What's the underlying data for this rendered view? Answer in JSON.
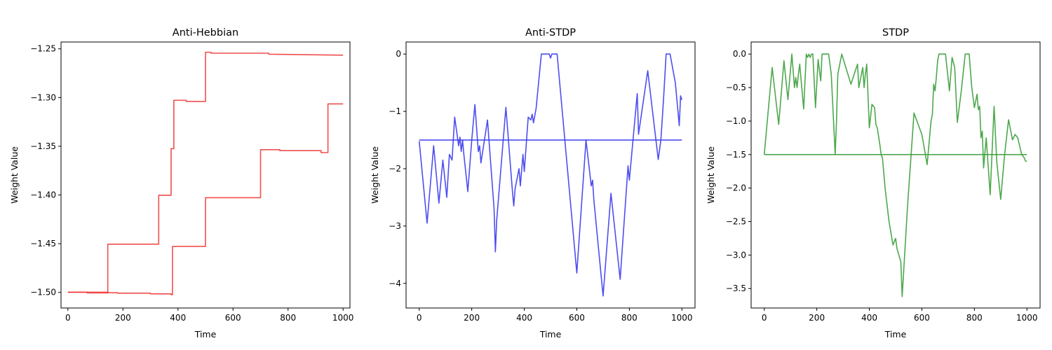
{
  "chart_data": [
    {
      "type": "line",
      "title": "Anti-Hebbian",
      "xlabel": "Time",
      "ylabel": "Weight Value",
      "xlim": [
        -25,
        1025
      ],
      "ylim": [
        -1.516,
        -1.243
      ],
      "xticks": [
        0,
        200,
        400,
        600,
        800,
        1000
      ],
      "xtick_labels": [
        "0",
        "200",
        "400",
        "600",
        "800",
        "1000"
      ],
      "yticks": [
        -1.5,
        -1.45,
        -1.4,
        -1.35,
        -1.3,
        -1.25
      ],
      "ytick_labels": [
        "−1.50",
        "−1.45",
        "−1.40",
        "−1.35",
        "−1.30",
        "−1.25"
      ],
      "color": "#ee3b3b",
      "grid": false,
      "series": [
        {
          "x": [
            0,
            70,
            70,
            145,
            145,
            330,
            330,
            375,
            375,
            385,
            385,
            395,
            395,
            430,
            430,
            500,
            500,
            520,
            520,
            730,
            730,
            1000
          ],
          "y": [
            -1.4998,
            -1.4998,
            -1.5005,
            -1.5005,
            -1.4505,
            -1.4505,
            -1.4003,
            -1.4003,
            -1.3525,
            -1.3525,
            -1.3028,
            -1.3028,
            -1.3028,
            -1.3028,
            -1.304,
            -1.304,
            -1.2535,
            -1.2535,
            -1.2545,
            -1.2545,
            -1.2555,
            -1.2565
          ]
        },
        {
          "x": [
            0,
            145,
            145,
            180,
            180,
            300,
            300,
            375,
            375,
            380,
            380,
            500,
            500,
            700,
            700,
            770,
            770,
            920,
            920,
            945,
            945,
            1000
          ],
          "y": [
            -1.4998,
            -1.4998,
            -1.5003,
            -1.5003,
            -1.5008,
            -1.5008,
            -1.5015,
            -1.5015,
            -1.5023,
            -1.5023,
            -1.4528,
            -1.4528,
            -1.4028,
            -1.4028,
            -1.3535,
            -1.3535,
            -1.3545,
            -1.3545,
            -1.3565,
            -1.3565,
            -1.3065,
            -1.3065
          ]
        }
      ]
    },
    {
      "type": "line",
      "title": "Anti-STDP",
      "xlabel": "Time",
      "ylabel": "Weight Value",
      "xlim": [
        -50,
        1050
      ],
      "ylim": [
        -4.43,
        0.21
      ],
      "xticks": [
        0,
        200,
        400,
        600,
        800,
        1000
      ],
      "xtick_labels": [
        "0",
        "200",
        "400",
        "600",
        "800",
        "1000"
      ],
      "yticks": [
        -4,
        -3,
        -2,
        -1,
        0
      ],
      "ytick_labels": [
        "−4",
        "−3",
        "−2",
        "−1",
        "0"
      ],
      "color": "#3b3bee",
      "grid": false,
      "series": [
        {
          "x": [
            0,
            1000
          ],
          "y": [
            -1.5,
            -1.5
          ]
        },
        {
          "x": [
            0,
            30,
            55,
            75,
            90,
            105,
            115,
            125,
            135,
            150,
            155,
            160,
            165,
            170,
            185,
            200,
            212,
            225,
            230,
            235,
            260,
            285,
            290,
            295,
            330,
            355,
            360,
            365,
            380,
            385,
            395,
            400,
            415,
            425,
            430,
            435,
            445,
            465,
            475,
            495,
            500,
            505,
            525,
            600,
            635,
            655,
            660,
            665,
            700,
            730,
            765,
            795,
            800,
            830,
            835,
            870,
            910,
            920,
            930,
            940,
            950,
            955,
            975,
            990,
            995,
            1000
          ],
          "y": [
            -1.52,
            -2.95,
            -1.6,
            -2.6,
            -1.85,
            -2.5,
            -1.75,
            -1.85,
            -1.1,
            -1.6,
            -1.45,
            -1.7,
            -1.5,
            -1.75,
            -2.4,
            -1.5,
            -0.88,
            -1.7,
            -1.6,
            -1.9,
            -1.15,
            -2.7,
            -3.45,
            -2.9,
            -0.93,
            -2.4,
            -2.65,
            -2.35,
            -2.0,
            -2.3,
            -1.75,
            -2.05,
            -1.1,
            -1.15,
            -1.05,
            -1.2,
            -0.95,
            0.0,
            0.0,
            0.0,
            -0.07,
            0.0,
            0.0,
            -3.82,
            -1.5,
            -2.3,
            -2.2,
            -2.55,
            -4.22,
            -2.43,
            -3.93,
            -1.95,
            -2.2,
            -0.69,
            -1.4,
            -0.29,
            -1.84,
            -1.5,
            -0.8,
            0.0,
            0.0,
            0.0,
            -0.5,
            -1.25,
            -0.73,
            -0.8
          ]
        }
      ]
    },
    {
      "type": "line",
      "title": "STDP",
      "xlabel": "Time",
      "ylabel": "Weight Value",
      "xlim": [
        -50,
        1050
      ],
      "ylim": [
        -3.79,
        0.18
      ],
      "xticks": [
        0,
        200,
        400,
        600,
        800,
        1000
      ],
      "xtick_labels": [
        "0",
        "200",
        "400",
        "600",
        "800",
        "1000"
      ],
      "yticks": [
        -3.5,
        -3.0,
        -2.5,
        -2.0,
        -1.5,
        -1.0,
        -0.5,
        0.0
      ],
      "ytick_labels": [
        "−3.5",
        "−3.0",
        "−2.5",
        "−2.0",
        "−1.5",
        "−1.0",
        "−0.5",
        "0.0"
      ],
      "color": "#3a9f3a",
      "grid": false,
      "series": [
        {
          "x": [
            0,
            1000
          ],
          "y": [
            -1.5,
            -1.5
          ]
        },
        {
          "x": [
            0,
            30,
            55,
            75,
            90,
            105,
            115,
            120,
            125,
            130,
            135,
            150,
            160,
            165,
            170,
            175,
            180,
            185,
            195,
            205,
            215,
            220,
            235,
            245,
            255,
            270,
            275,
            280,
            295,
            330,
            355,
            360,
            365,
            375,
            380,
            385,
            390,
            400,
            410,
            420,
            425,
            430,
            440,
            445,
            450,
            460,
            475,
            490,
            500,
            505,
            520,
            525,
            545,
            570,
            600,
            620,
            635,
            640,
            645,
            650,
            655,
            660,
            665,
            670,
            675,
            690,
            705,
            715,
            725,
            735,
            750,
            765,
            780,
            785,
            790,
            795,
            800,
            810,
            815,
            820,
            825,
            830,
            835,
            845,
            860,
            875,
            885,
            900,
            915,
            930,
            945,
            955,
            965,
            980,
            990,
            995,
            1000
          ],
          "y": [
            -1.5,
            -0.2,
            -1.05,
            -0.1,
            -0.68,
            0.0,
            -0.5,
            -0.35,
            -0.5,
            -0.3,
            -0.15,
            -0.82,
            0.0,
            -0.05,
            0.0,
            -0.05,
            0.0,
            0.0,
            -0.8,
            -0.08,
            -0.4,
            0.0,
            0.0,
            0.0,
            -0.3,
            -1.5,
            -1.0,
            -0.3,
            0.0,
            -0.45,
            -0.15,
            -0.5,
            -0.4,
            -0.2,
            -0.5,
            -0.3,
            -0.15,
            -1.1,
            -0.75,
            -0.8,
            -1.05,
            -1.1,
            -1.35,
            -1.5,
            -1.55,
            -2.0,
            -2.5,
            -2.85,
            -2.75,
            -2.9,
            -3.1,
            -3.62,
            -2.3,
            -0.88,
            -1.2,
            -1.65,
            -1.0,
            -0.9,
            -0.45,
            -0.55,
            -0.35,
            -0.1,
            0.0,
            0.0,
            0.0,
            0.0,
            -0.55,
            -0.05,
            -0.2,
            -1.02,
            -0.55,
            0.0,
            0.0,
            -0.25,
            -0.5,
            -0.65,
            -0.8,
            -0.6,
            -0.83,
            -0.78,
            -1.25,
            -1.15,
            -1.7,
            -1.25,
            -2.1,
            -0.78,
            -1.6,
            -2.17,
            -1.5,
            -0.98,
            -1.28,
            -1.2,
            -1.25,
            -1.5,
            -1.55,
            -1.6,
            -1.6
          ]
        }
      ]
    }
  ]
}
